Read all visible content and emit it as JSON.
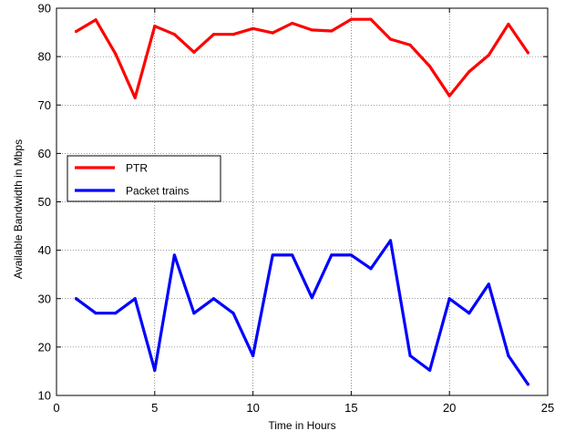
{
  "chart_data": {
    "type": "line",
    "xlabel": "Time in Hours",
    "ylabel": "Available Bandwidth in Mbps",
    "xlim": [
      0,
      25
    ],
    "ylim": [
      10,
      90
    ],
    "xticks": [
      0,
      5,
      10,
      15,
      20,
      25
    ],
    "yticks": [
      10,
      20,
      30,
      40,
      50,
      60,
      70,
      80,
      90
    ],
    "grid": true,
    "legend_position": "left",
    "x": [
      1,
      2,
      3,
      4,
      5,
      6,
      7,
      8,
      9,
      10,
      11,
      12,
      13,
      14,
      15,
      16,
      17,
      18,
      19,
      20,
      21,
      22,
      23,
      24
    ],
    "series": [
      {
        "name": "PTR",
        "color": "#ff0000",
        "values": [
          85.2,
          87.6,
          80.6,
          71.5,
          86.3,
          84.6,
          80.9,
          84.6,
          84.6,
          85.8,
          84.9,
          86.9,
          85.5,
          85.3,
          87.7,
          87.7,
          83.6,
          82.4,
          78.0,
          71.9,
          76.9,
          80.3,
          86.7,
          80.8
        ]
      },
      {
        "name": "Packet trains",
        "color": "#0000ff",
        "values": [
          30.0,
          27.0,
          27.0,
          30.0,
          15.2,
          39.0,
          27.0,
          30.0,
          27.0,
          18.2,
          39.0,
          39.0,
          30.2,
          39.0,
          39.0,
          36.2,
          42.0,
          18.2,
          15.2,
          30.0,
          27.0,
          33.0,
          18.2,
          12.3
        ]
      }
    ]
  }
}
